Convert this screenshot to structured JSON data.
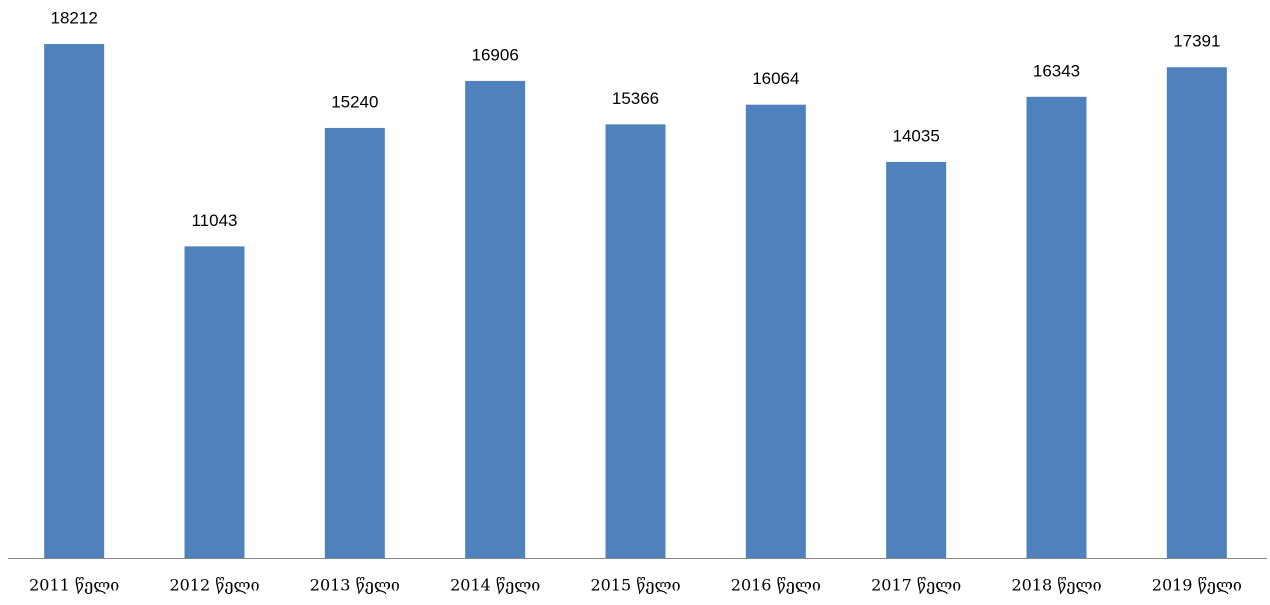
{
  "chart_data": {
    "type": "bar",
    "categories": [
      "2011 წელი",
      "2012 წელი",
      "2013 წელი",
      "2014 წელი",
      "2015 წელი",
      "2016 წელი",
      "2017 წელი",
      "2018 წელი",
      "2019 წელი"
    ],
    "values": [
      18212,
      11043,
      15240,
      16906,
      15366,
      16064,
      14035,
      16343,
      17391
    ],
    "color": "#4f81bd",
    "ylim": [
      0,
      20000
    ]
  }
}
